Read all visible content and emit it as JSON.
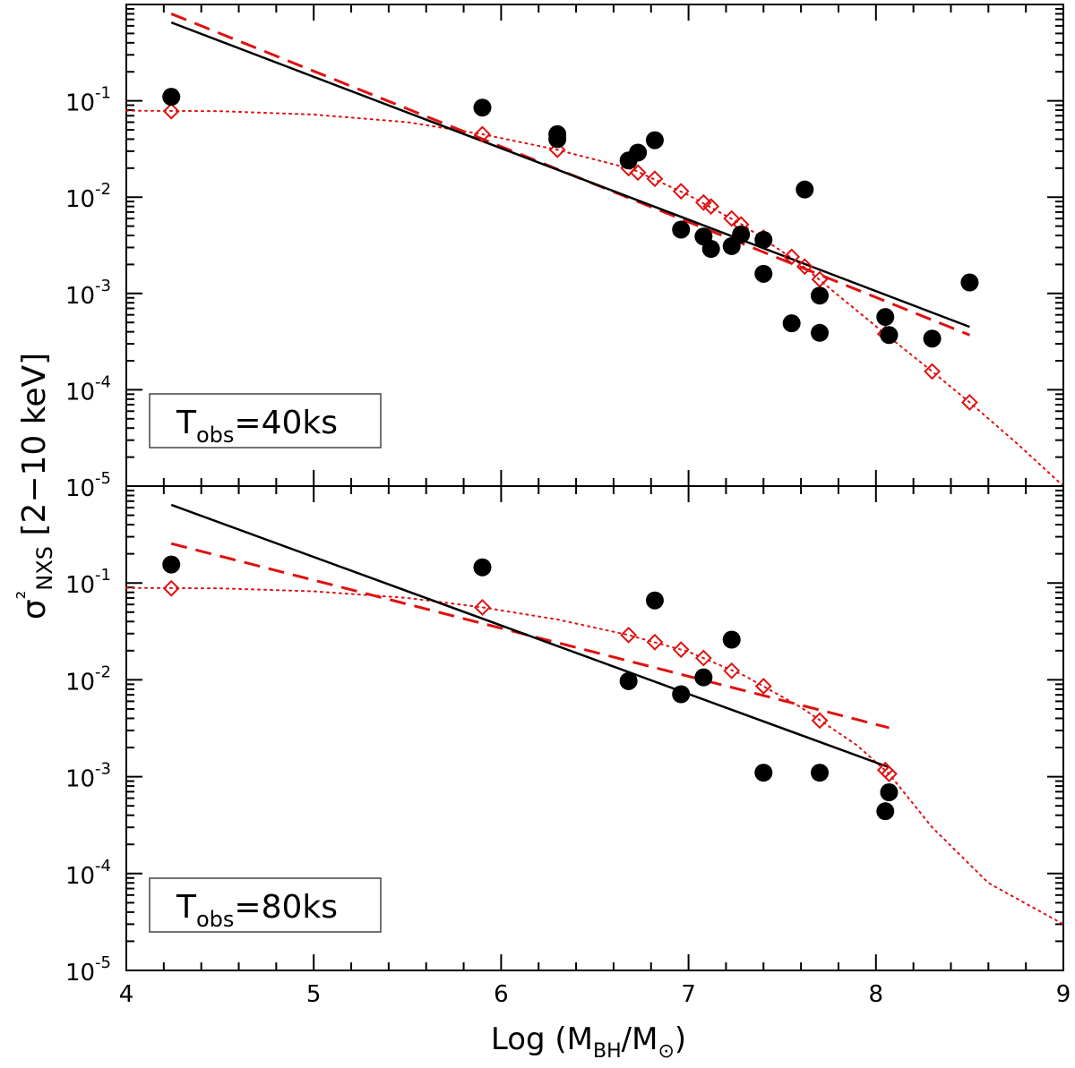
{
  "chart_data": {
    "type": "scatter",
    "xlabel": "Log (M_BH/M_⊙)",
    "ylabel": "σ²_NXS [2−10 keV]",
    "xlim": [
      4,
      9
    ],
    "ylim_log10": [
      -5,
      0
    ],
    "x_ticks": [
      "4",
      "5",
      "6",
      "7",
      "8",
      "9"
    ],
    "y_ticks": [
      {
        "base": "10",
        "exp": "-1",
        "log": -1
      },
      {
        "base": "10",
        "exp": "-2",
        "log": -2
      },
      {
        "base": "10",
        "exp": "-3",
        "log": -3
      },
      {
        "base": "10",
        "exp": "-4",
        "log": -4
      },
      {
        "base": "10",
        "exp": "-5",
        "log": -5
      }
    ],
    "panels": [
      {
        "label_main": "T",
        "label_sub": "obs",
        "label_value": "=40ks",
        "observed": [
          [
            4.24,
            0.11
          ],
          [
            5.9,
            0.085
          ],
          [
            6.3,
            0.045
          ],
          [
            6.3,
            0.04
          ],
          [
            6.68,
            0.024
          ],
          [
            6.73,
            0.029
          ],
          [
            6.82,
            0.039
          ],
          [
            6.96,
            0.0046
          ],
          [
            7.08,
            0.0039
          ],
          [
            7.12,
            0.0029
          ],
          [
            7.23,
            0.0031
          ],
          [
            7.28,
            0.0041
          ],
          [
            7.4,
            0.0036
          ],
          [
            7.4,
            0.0016
          ],
          [
            7.55,
            0.00049
          ],
          [
            7.62,
            0.012
          ],
          [
            7.7,
            0.00095
          ],
          [
            7.7,
            0.00039
          ],
          [
            8.05,
            0.00057
          ],
          [
            8.07,
            0.00037
          ],
          [
            8.3,
            0.00034
          ],
          [
            8.5,
            0.0013
          ]
        ],
        "model": [
          [
            4.24,
            0.078
          ],
          [
            5.9,
            0.045
          ],
          [
            6.3,
            0.031
          ],
          [
            6.68,
            0.02
          ],
          [
            6.73,
            0.018
          ],
          [
            6.82,
            0.0155
          ],
          [
            6.96,
            0.0115
          ],
          [
            7.08,
            0.0088
          ],
          [
            7.12,
            0.008
          ],
          [
            7.23,
            0.006
          ],
          [
            7.28,
            0.0052
          ],
          [
            7.4,
            0.0038
          ],
          [
            7.55,
            0.0024
          ],
          [
            7.62,
            0.0019
          ],
          [
            7.7,
            0.0014
          ],
          [
            8.05,
            0.00038
          ],
          [
            8.3,
            0.000155
          ],
          [
            8.5,
            7.4e-05
          ]
        ],
        "model_curve": [
          [
            4.0,
            0.079
          ],
          [
            4.5,
            0.078
          ],
          [
            5.0,
            0.072
          ],
          [
            5.5,
            0.06
          ],
          [
            5.9,
            0.045
          ],
          [
            6.3,
            0.031
          ],
          [
            6.7,
            0.0195
          ],
          [
            7.0,
            0.0105
          ],
          [
            7.3,
            0.005
          ],
          [
            7.6,
            0.002
          ],
          [
            7.8,
            0.00095
          ],
          [
            8.05,
            0.00038
          ],
          [
            8.3,
            0.000155
          ],
          [
            8.5,
            7.4e-05
          ],
          [
            8.75,
            2.8e-05
          ],
          [
            9.0,
            1e-05
          ]
        ],
        "fit_solid": {
          "x": [
            4.24,
            8.5
          ],
          "y": [
            0.65,
            0.00045
          ]
        },
        "fit_dashed": {
          "x": [
            4.24,
            8.5
          ],
          "y": [
            0.8,
            0.00037
          ]
        }
      },
      {
        "label_main": "T",
        "label_sub": "obs",
        "label_value": "=80ks",
        "observed": [
          [
            4.24,
            0.155
          ],
          [
            5.9,
            0.145
          ],
          [
            6.68,
            0.0097
          ],
          [
            6.82,
            0.066
          ],
          [
            6.96,
            0.0071
          ],
          [
            7.08,
            0.0106
          ],
          [
            7.23,
            0.026
          ],
          [
            7.4,
            0.0011
          ],
          [
            7.7,
            0.0011
          ],
          [
            8.05,
            0.00044
          ],
          [
            8.07,
            0.00069
          ]
        ],
        "model": [
          [
            4.24,
            0.088
          ],
          [
            5.9,
            0.056
          ],
          [
            6.68,
            0.029
          ],
          [
            6.82,
            0.0245
          ],
          [
            6.96,
            0.0205
          ],
          [
            7.08,
            0.0168
          ],
          [
            7.23,
            0.0124
          ],
          [
            7.4,
            0.0086
          ],
          [
            7.7,
            0.0038
          ],
          [
            8.05,
            0.00117
          ],
          [
            8.07,
            0.00107
          ]
        ],
        "model_curve": [
          [
            4.0,
            0.089
          ],
          [
            4.5,
            0.088
          ],
          [
            5.0,
            0.082
          ],
          [
            5.5,
            0.07
          ],
          [
            5.9,
            0.056
          ],
          [
            6.3,
            0.042
          ],
          [
            6.68,
            0.029
          ],
          [
            7.0,
            0.0195
          ],
          [
            7.3,
            0.011
          ],
          [
            7.6,
            0.0052
          ],
          [
            7.9,
            0.0021
          ],
          [
            8.07,
            0.00107
          ],
          [
            8.3,
            0.0003
          ],
          [
            8.6,
            8e-05
          ],
          [
            9.0,
            3e-05
          ]
        ],
        "fit_solid": {
          "x": [
            4.24,
            8.07
          ],
          "y": [
            0.64,
            0.00125
          ]
        },
        "fit_dashed": {
          "x": [
            4.24,
            8.07
          ],
          "y": [
            0.255,
            0.0032
          ]
        }
      }
    ]
  }
}
